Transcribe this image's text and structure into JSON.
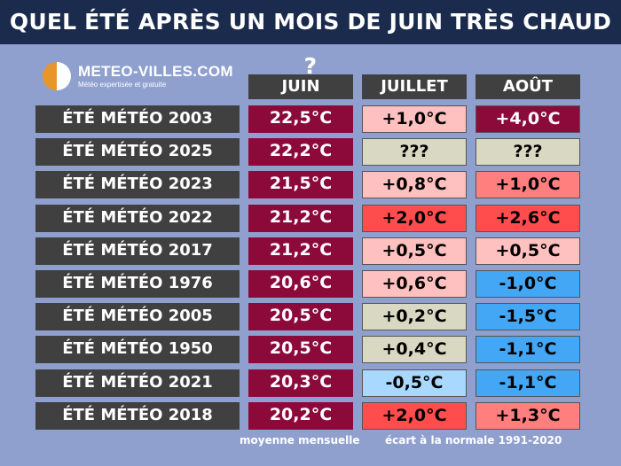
{
  "header": {
    "title": "QUEL ÉTÉ APRÈS UN MOIS DE JUIN TRÈS CHAUD ?"
  },
  "logo": {
    "name": "METEO-VILLES.COM",
    "tagline": "Météo expertisée et gratuite"
  },
  "colors": {
    "background": "#8fa0cf",
    "title_bar": "#1a2b4d",
    "header_cell": "#404040",
    "june_cell": "#8b0a3a",
    "warm_strong": "#8b0a3a",
    "warm_mid": "#ff4d4d",
    "warm_light": "#ff7f7f",
    "warm_pale": "#ffc0c0",
    "neutral": "#d9d9c3",
    "cool_light": "#a9d8ff",
    "cool": "#43a7f5"
  },
  "chart_data": {
    "type": "table",
    "columns": [
      "JUIN",
      "JUILLET",
      "AOÛT"
    ],
    "rows": [
      {
        "label": "ÉTÉ MÉTÉO 2003",
        "juin": "22,5°C",
        "juillet": "+1,0°C",
        "aout": "+4,0°C",
        "juillet_color": "#ffc0c0",
        "aout_color": "#8b0a3a"
      },
      {
        "label": "ÉTÉ MÉTÉO 2025",
        "juin": "22,2°C",
        "juillet": "???",
        "aout": "???",
        "juillet_color": "#d9d9c3",
        "aout_color": "#d9d9c3"
      },
      {
        "label": "ÉTÉ MÉTÉO 2023",
        "juin": "21,5°C",
        "juillet": "+0,8°C",
        "aout": "+1,0°C",
        "juillet_color": "#ffc0c0",
        "aout_color": "#ff7f7f"
      },
      {
        "label": "ÉTÉ MÉTÉO 2022",
        "juin": "21,2°C",
        "juillet": "+2,0°C",
        "aout": "+2,6°C",
        "juillet_color": "#ff4d4d",
        "aout_color": "#ff4d4d"
      },
      {
        "label": "ÉTÉ MÉTÉO 2017",
        "juin": "21,2°C",
        "juillet": "+0,5°C",
        "aout": "+0,5°C",
        "juillet_color": "#ffc0c0",
        "aout_color": "#ffc0c0"
      },
      {
        "label": "ÉTÉ MÉTÉO 1976",
        "juin": "20,6°C",
        "juillet": "+0,6°C",
        "aout": "-1,0°C",
        "juillet_color": "#ffc0c0",
        "aout_color": "#43a7f5"
      },
      {
        "label": "ÉTÉ MÉTÉO 2005",
        "juin": "20,5°C",
        "juillet": "+0,2°C",
        "aout": "-1,5°C",
        "juillet_color": "#d9d9c3",
        "aout_color": "#43a7f5"
      },
      {
        "label": "ÉTÉ MÉTÉO 1950",
        "juin": "20,5°C",
        "juillet": "+0,4°C",
        "aout": "-1,1°C",
        "juillet_color": "#d9d9c3",
        "aout_color": "#43a7f5"
      },
      {
        "label": "ÉTÉ MÉTÉO 2021",
        "juin": "20,3°C",
        "juillet": "-0,5°C",
        "aout": "-1,1°C",
        "juillet_color": "#a9d8ff",
        "aout_color": "#43a7f5"
      },
      {
        "label": "ÉTÉ MÉTÉO 2018",
        "juin": "20,2°C",
        "juillet": "+2,0°C",
        "aout": "+1,3°C",
        "juillet_color": "#ff4d4d",
        "aout_color": "#ff7f7f"
      }
    ],
    "footer_monthly": "moyenne mensuelle",
    "footer_anomaly": "écart à la normale 1991-2020"
  }
}
